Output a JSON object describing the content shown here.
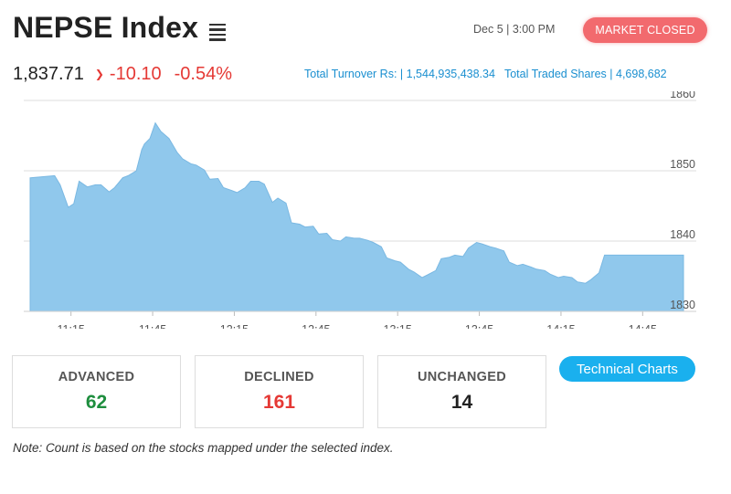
{
  "header": {
    "title": "NEPSE Index",
    "datetime": "Dec 5 | 3:00 PM",
    "market_status": "MARKET CLOSED"
  },
  "price": {
    "last": "1,837.71",
    "change": "-10.10",
    "change_pct": "-0.54%"
  },
  "turnover": {
    "total_turnover": "Total Turnover Rs: | 1,544,935,438.34",
    "total_shares": "Total Traded Shares | 4,698,682"
  },
  "stats": {
    "advanced_label": "ADVANCED",
    "advanced_value": "62",
    "declined_label": "DECLINED",
    "declined_value": "161",
    "unchanged_label": "UNCHANGED",
    "unchanged_value": "14"
  },
  "technical_charts_label": "Technical Charts",
  "note": "Note: Count is based on the stocks mapped under the selected index.",
  "colors": {
    "accent_blue": "#1a8fd0",
    "negative": "#e53935",
    "positive": "#1e8e3e",
    "status_closed": "#f26a6e",
    "area_fill": "#90c8ec"
  },
  "chart_data": {
    "type": "area",
    "ylim": [
      1830,
      1860
    ],
    "xlim": [
      "11:00",
      "15:00"
    ],
    "yticks": [
      "1830",
      "1840",
      "1850",
      "1860"
    ],
    "xticks": [
      "11:15",
      "11:45",
      "12:15",
      "12:45",
      "13:15",
      "13:45",
      "14:15",
      "14:45"
    ],
    "x": [
      "11:00",
      "11:09",
      "11:11",
      "11:14",
      "11:16",
      "11:18",
      "11:21",
      "11:24",
      "11:26",
      "11:29",
      "11:31",
      "11:34",
      "11:36",
      "11:39",
      "11:41",
      "11:42",
      "11:44",
      "11:46",
      "11:48",
      "11:51",
      "11:54",
      "11:56",
      "11:59",
      "12:01",
      "12:04",
      "12:06",
      "12:09",
      "12:11",
      "12:14",
      "12:16",
      "12:19",
      "12:21",
      "12:24",
      "12:26",
      "12:29",
      "12:31",
      "12:34",
      "12:36",
      "12:39",
      "12:41",
      "12:44",
      "12:46",
      "12:49",
      "12:51",
      "12:54",
      "12:56",
      "12:59",
      "13:01",
      "13:04",
      "13:06",
      "13:09",
      "13:11",
      "13:14",
      "13:16",
      "13:19",
      "13:21",
      "13:24",
      "13:26",
      "13:29",
      "13:31",
      "13:34",
      "13:36",
      "13:39",
      "13:41",
      "13:44",
      "13:46",
      "13:49",
      "13:51",
      "13:54",
      "13:56",
      "13:59",
      "14:01",
      "14:04",
      "14:06",
      "14:09",
      "14:11",
      "14:14",
      "14:16",
      "14:19",
      "14:21",
      "14:24",
      "14:26",
      "14:29",
      "14:31",
      "14:34",
      "14:36",
      "14:39",
      "14:41",
      "14:44",
      "14:46",
      "14:49",
      "14:51",
      "14:54",
      "14:56",
      "14:58",
      "15:00"
    ],
    "y": [
      1849.0,
      1849.3,
      1848.0,
      1844.8,
      1845.3,
      1848.5,
      1847.7,
      1848.0,
      1848.0,
      1847.0,
      1847.6,
      1849.0,
      1849.3,
      1850.0,
      1853.0,
      1853.8,
      1854.6,
      1856.8,
      1855.6,
      1854.6,
      1852.6,
      1851.7,
      1851.0,
      1850.8,
      1850.1,
      1848.8,
      1848.9,
      1847.6,
      1847.2,
      1846.9,
      1847.6,
      1848.5,
      1848.5,
      1848.1,
      1845.5,
      1846.1,
      1845.4,
      1842.6,
      1842.4,
      1842.0,
      1842.1,
      1841.0,
      1841.1,
      1840.2,
      1840.0,
      1840.6,
      1840.4,
      1840.4,
      1840.1,
      1839.8,
      1839.2,
      1837.6,
      1837.2,
      1837.0,
      1836.0,
      1835.6,
      1834.8,
      1835.2,
      1835.8,
      1837.5,
      1837.7,
      1838.0,
      1837.8,
      1839.0,
      1839.8,
      1839.6,
      1839.2,
      1839.0,
      1838.6,
      1837.0,
      1836.5,
      1836.7,
      1836.3,
      1836.0,
      1835.8,
      1835.3,
      1834.8,
      1835.0,
      1834.8,
      1834.2,
      1834.0,
      1834.5,
      1835.5,
      1838.0,
      1838.0,
      1838.0,
      1838.0,
      1838.0,
      1838.0,
      1838.0,
      1838.0,
      1838.0,
      1838.0,
      1838.0,
      1838.0,
      1838.0
    ],
    "grid": true,
    "legend": "none"
  }
}
